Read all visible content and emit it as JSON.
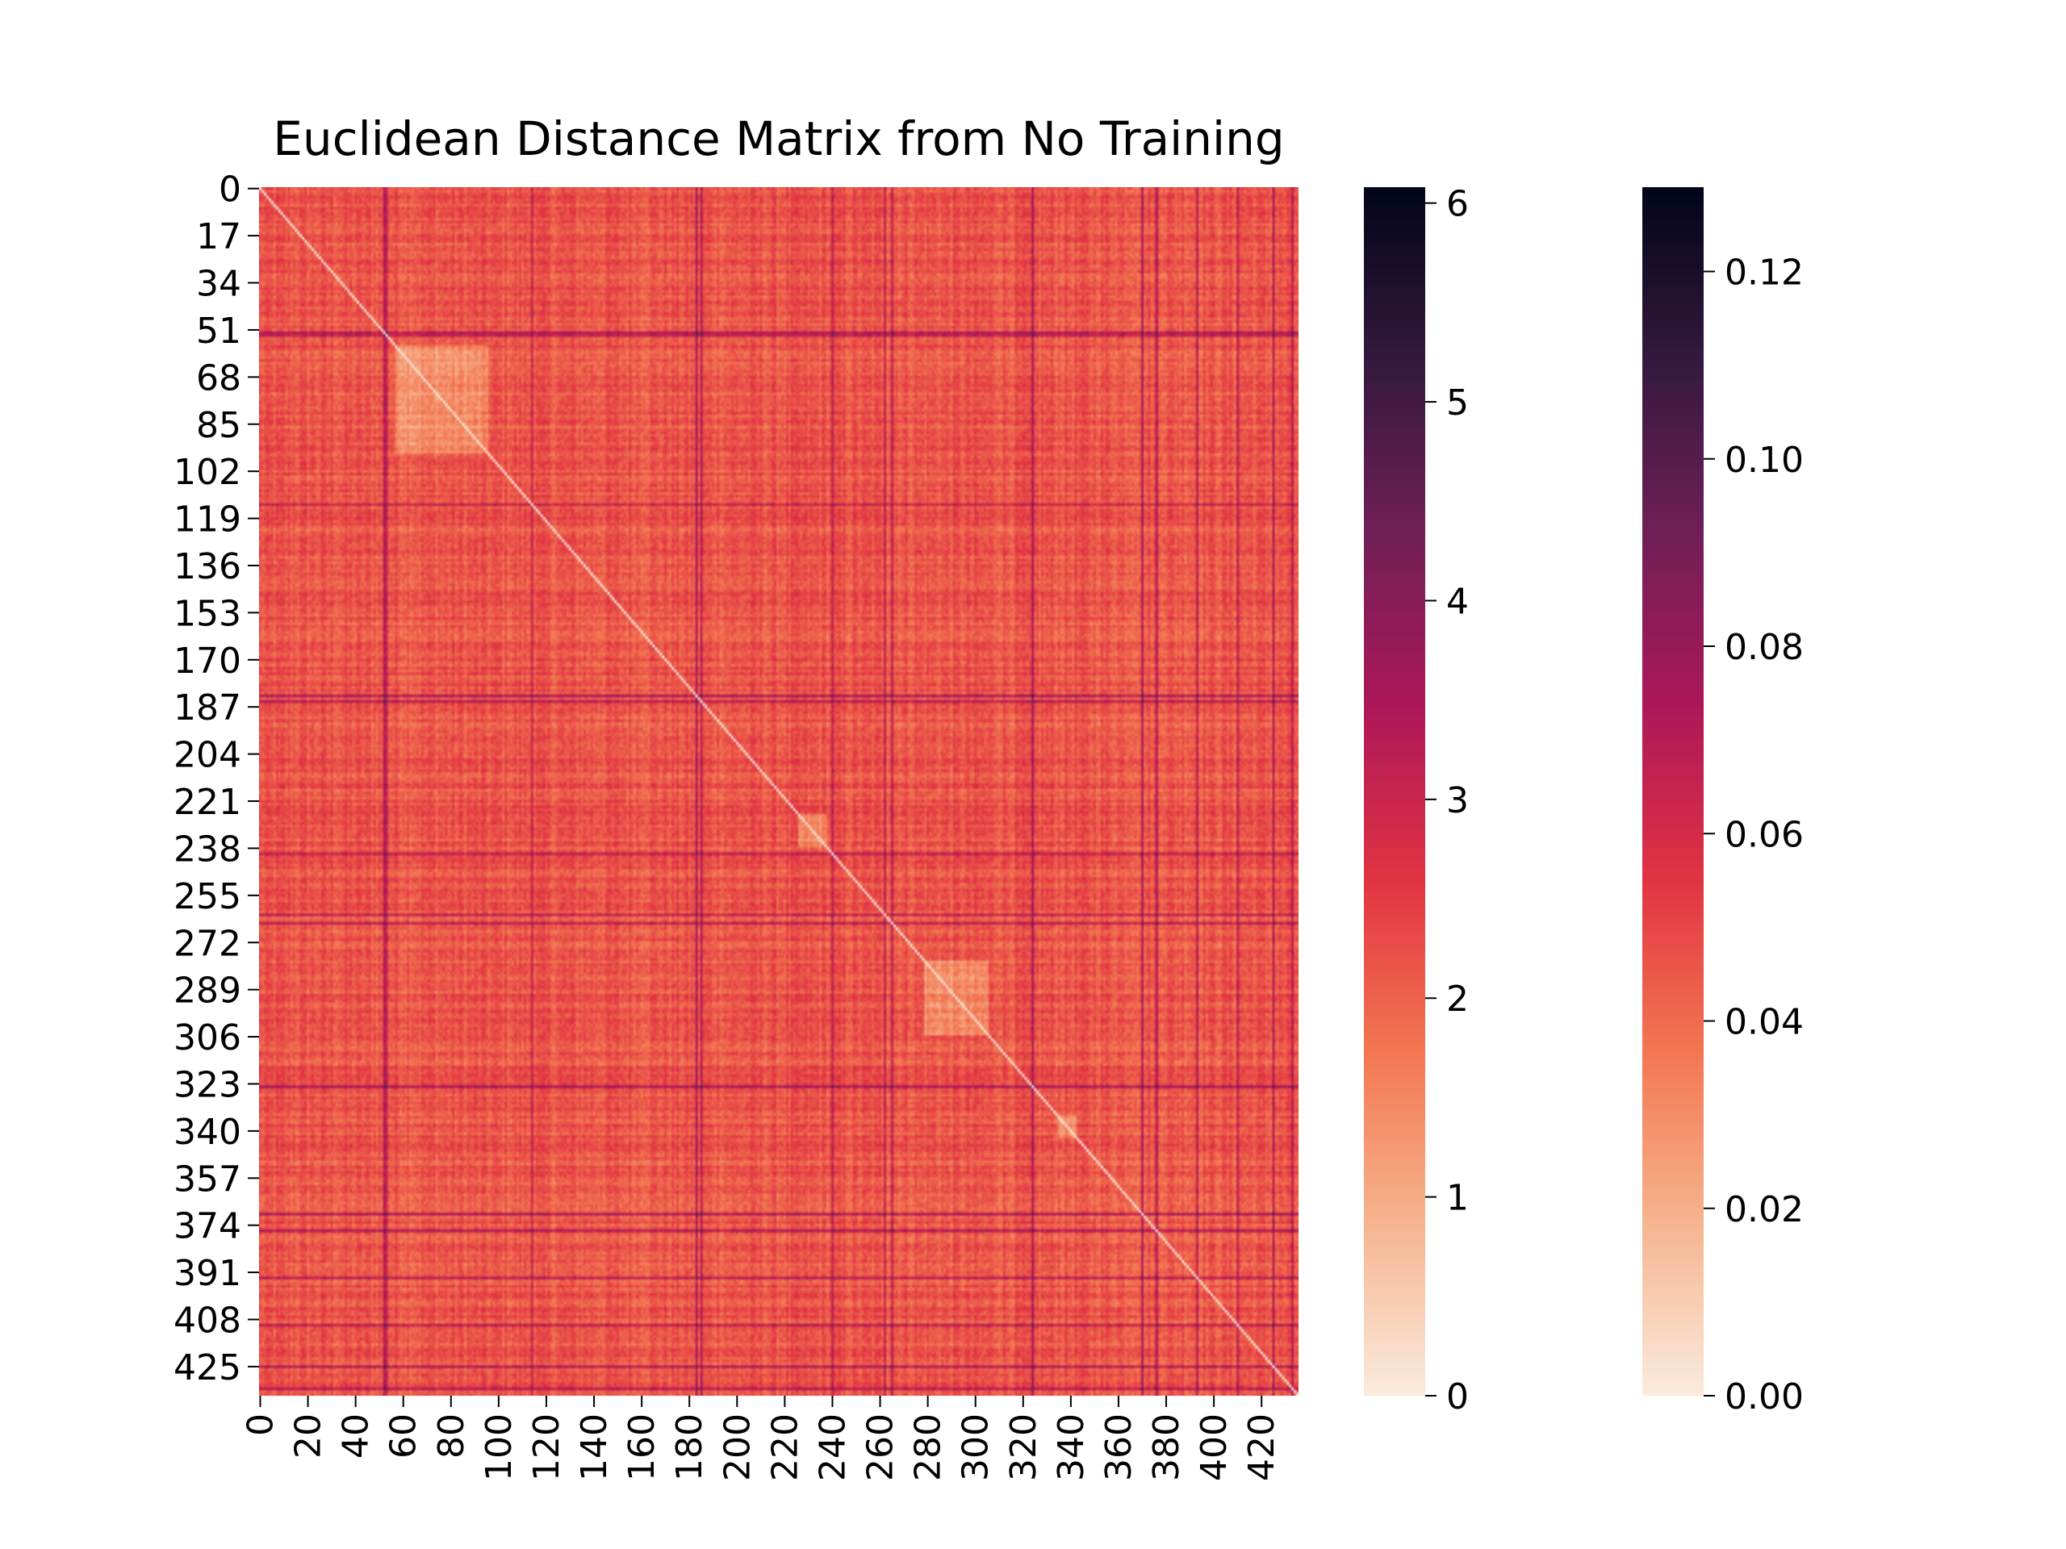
{
  "chart_data": {
    "type": "heatmap",
    "title": "Euclidean Distance Matrix from No Training",
    "n": 436,
    "row_ticks": [
      0,
      17,
      34,
      51,
      68,
      85,
      102,
      119,
      136,
      153,
      170,
      187,
      204,
      221,
      238,
      255,
      272,
      289,
      306,
      323,
      340,
      357,
      374,
      391,
      408,
      425
    ],
    "col_ticks": [
      0,
      20,
      40,
      60,
      80,
      100,
      120,
      140,
      160,
      180,
      200,
      220,
      240,
      260,
      280,
      300,
      320,
      340,
      360,
      380,
      400,
      420
    ],
    "diagonal_value": 0,
    "typical_range": [
      1.5,
      3.0
    ],
    "outlier_indices": [
      52,
      53,
      114,
      183,
      185,
      240,
      262,
      265,
      324,
      370,
      376,
      393,
      410,
      425,
      433
    ],
    "low_blocks": [
      [
        57,
        95
      ],
      [
        226,
        237
      ],
      [
        279,
        305
      ],
      [
        335,
        342
      ]
    ],
    "colormap": [
      "#faebdd",
      "#f6b48f",
      "#f37651",
      "#e13342",
      "#ad1759",
      "#701f57",
      "#35193e",
      "#03051a"
    ],
    "colorbars": [
      {
        "min": 0,
        "max": 6.08,
        "ticks": [
          "0",
          "1",
          "2",
          "3",
          "4",
          "5",
          "6"
        ],
        "tick_values": [
          0,
          1,
          2,
          3,
          4,
          5,
          6
        ]
      },
      {
        "min": 0,
        "max": 0.129,
        "ticks": [
          "0.00",
          "0.02",
          "0.04",
          "0.06",
          "0.08",
          "0.10",
          "0.12"
        ],
        "tick_values": [
          0,
          0.02,
          0.04,
          0.06,
          0.08,
          0.1,
          0.12
        ]
      }
    ]
  }
}
